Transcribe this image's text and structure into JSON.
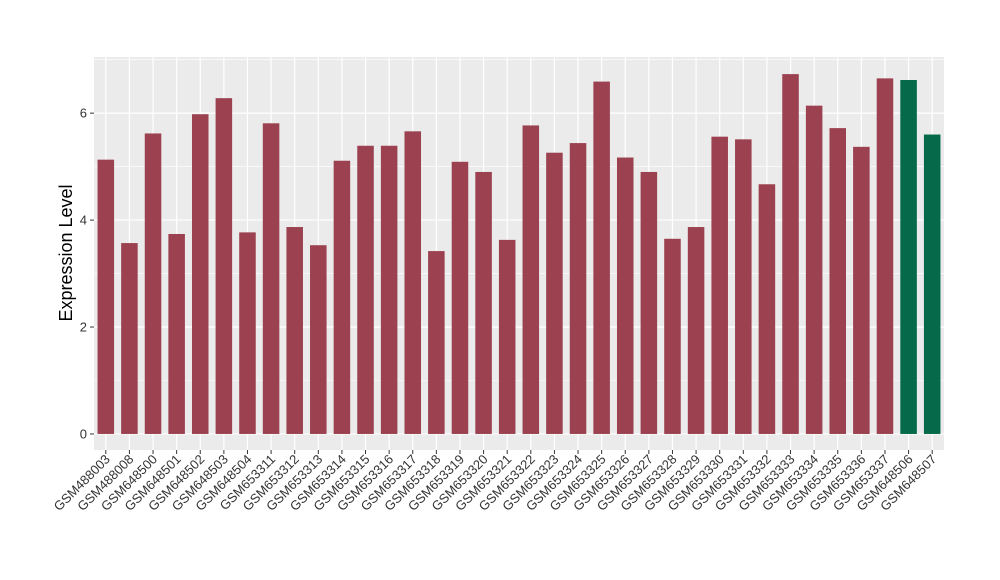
{
  "chart_data": {
    "type": "bar",
    "title": "",
    "xlabel": "",
    "ylabel": "Expression Level",
    "ylim": [
      -0.3,
      7.05
    ],
    "yticks": [
      0,
      2,
      4,
      6
    ],
    "grid": true,
    "legend": "none",
    "colors": {
      "primary": "#9b4150",
      "highlight": "#05694a",
      "panel": "#ebebeb",
      "grid": "#ffffff"
    },
    "categories": [
      "GSM488003",
      "GSM488008",
      "GSM648500",
      "GSM648501",
      "GSM648502",
      "GSM648503",
      "GSM648504",
      "GSM653311",
      "GSM653312",
      "GSM653313",
      "GSM653314",
      "GSM653315",
      "GSM653316",
      "GSM653317",
      "GSM653318",
      "GSM653319",
      "GSM653320",
      "GSM653321",
      "GSM653322",
      "GSM653323",
      "GSM653324",
      "GSM653325",
      "GSM653326",
      "GSM653327",
      "GSM653328",
      "GSM653329",
      "GSM653330",
      "GSM653331",
      "GSM653332",
      "GSM653333",
      "GSM653334",
      "GSM653335",
      "GSM653336",
      "GSM653337",
      "GSM648506",
      "GSM648507"
    ],
    "values": [
      5.13,
      3.57,
      5.62,
      3.74,
      5.98,
      6.28,
      3.77,
      5.81,
      3.87,
      3.53,
      5.11,
      5.39,
      5.39,
      5.66,
      3.42,
      5.09,
      4.9,
      3.63,
      5.77,
      5.26,
      5.44,
      6.59,
      5.17,
      4.9,
      3.65,
      3.87,
      5.56,
      5.51,
      4.67,
      6.73,
      6.14,
      5.72,
      5.37,
      6.65,
      6.62,
      5.6
    ],
    "highlight": [
      false,
      false,
      false,
      false,
      false,
      false,
      false,
      false,
      false,
      false,
      false,
      false,
      false,
      false,
      false,
      false,
      false,
      false,
      false,
      false,
      false,
      false,
      false,
      false,
      false,
      false,
      false,
      false,
      false,
      false,
      false,
      false,
      false,
      false,
      true,
      true
    ]
  }
}
